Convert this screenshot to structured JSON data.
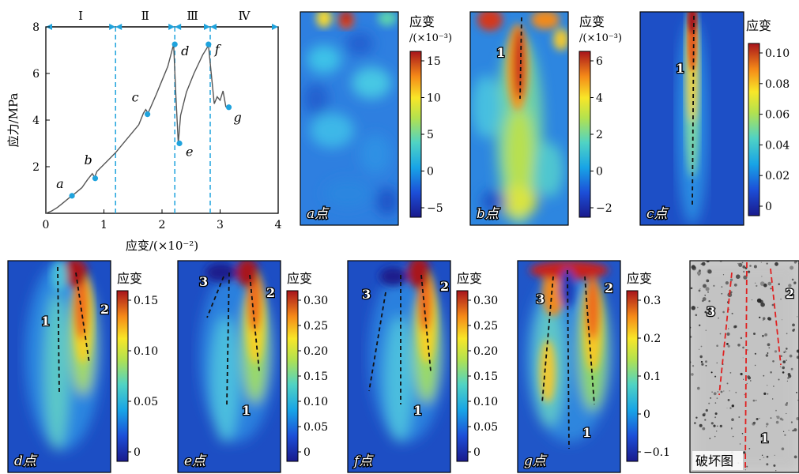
{
  "chart_data": {
    "type": "line",
    "xlabel": "应变/(×10⁻²)",
    "ylabel": "应力/MPa",
    "xlim": [
      0,
      4
    ],
    "ylim": [
      0,
      8
    ],
    "xticks": [
      "0",
      "1",
      "2",
      "3",
      "4"
    ],
    "yticks": [
      "2",
      "4",
      "6",
      "8"
    ],
    "grid": false,
    "stages": [
      {
        "label": "Ⅰ",
        "from": 0,
        "to": 1.2
      },
      {
        "label": "Ⅱ",
        "from": 1.2,
        "to": 2.22
      },
      {
        "label": "Ⅲ",
        "from": 2.22,
        "to": 2.83
      },
      {
        "label": "Ⅳ",
        "from": 2.83,
        "to": 4
      }
    ],
    "boundaries": [
      1.2,
      2.22,
      2.83
    ],
    "series": [
      {
        "x": [
          0,
          0.1,
          0.2,
          0.3,
          0.42,
          0.5,
          0.62,
          0.72,
          0.8,
          0.84,
          0.88,
          1.0,
          1.2,
          1.4,
          1.6,
          1.68,
          1.72,
          1.76,
          1.9,
          2.0,
          2.1,
          2.2,
          2.24,
          2.28,
          2.32,
          2.42,
          2.55,
          2.7,
          2.8,
          2.84,
          2.9,
          2.95,
          3.0,
          3.05,
          3.1
        ],
        "y": [
          0,
          0.1,
          0.25,
          0.45,
          0.7,
          0.85,
          1.1,
          1.45,
          1.7,
          1.55,
          1.8,
          2.1,
          2.6,
          3.2,
          3.8,
          4.3,
          4.45,
          4.3,
          5.1,
          5.7,
          6.3,
          7.25,
          5.0,
          3.0,
          4.2,
          5.2,
          6.0,
          6.8,
          7.2,
          6.2,
          4.7,
          5.0,
          4.85,
          5.25,
          4.55
        ]
      }
    ],
    "points": [
      {
        "label": "a",
        "x": 0.45,
        "y": 0.75
      },
      {
        "label": "b",
        "x": 0.85,
        "y": 1.5
      },
      {
        "label": "c",
        "x": 1.75,
        "y": 4.25
      },
      {
        "label": "d",
        "x": 2.22,
        "y": 7.25
      },
      {
        "label": "e",
        "x": 2.3,
        "y": 3.0
      },
      {
        "label": "f",
        "x": 2.8,
        "y": 7.25
      },
      {
        "label": "g",
        "x": 3.15,
        "y": 4.55
      }
    ]
  },
  "panels": [
    {
      "id": "a",
      "label": "a点",
      "colorbar_title": "应变",
      "colorbar_unit": "/(×10⁻³)",
      "ticks": [
        "15",
        "10",
        "5",
        "0",
        "−5"
      ],
      "crack_labels": []
    },
    {
      "id": "b",
      "label": "b点",
      "colorbar_title": "应变",
      "colorbar_unit": "/(×10⁻³)",
      "ticks": [
        "6",
        "4",
        "2",
        "0",
        "−2"
      ],
      "crack_labels": [
        "1"
      ]
    },
    {
      "id": "c",
      "label": "c点",
      "colorbar_title": "应变",
      "colorbar_unit": "",
      "ticks": [
        "0.10",
        "0.08",
        "0.06",
        "0.04",
        "0.02",
        "0"
      ],
      "crack_labels": [
        "1"
      ]
    },
    {
      "id": "d",
      "label": "d点",
      "colorbar_title": "应变",
      "colorbar_unit": "",
      "ticks": [
        "0.15",
        "0.10",
        "0.05",
        "0"
      ],
      "crack_labels": [
        "1",
        "2"
      ]
    },
    {
      "id": "e",
      "label": "e点",
      "colorbar_title": "应变",
      "colorbar_unit": "",
      "ticks": [
        "0.30",
        "0.25",
        "0.20",
        "0.15",
        "0.10",
        "0.05",
        "0"
      ],
      "crack_labels": [
        "3",
        "2",
        "1"
      ]
    },
    {
      "id": "f",
      "label": "f点",
      "colorbar_title": "应变",
      "colorbar_unit": "",
      "ticks": [
        "0.30",
        "0.25",
        "0.20",
        "0.15",
        "0.10",
        "0.05",
        "0"
      ],
      "crack_labels": [
        "3",
        "2",
        "1"
      ]
    },
    {
      "id": "g",
      "label": "g点",
      "colorbar_title": "应变",
      "colorbar_unit": "",
      "ticks": [
        "0.3",
        "0.2",
        "0.1",
        "0",
        "−0.1"
      ],
      "crack_labels": [
        "3",
        "2",
        "1"
      ]
    }
  ],
  "failure_photo": {
    "label": "破坏图",
    "crack_labels": [
      "3",
      "2",
      "1"
    ]
  },
  "colors": {
    "curve": "#555555",
    "marker": "#1fa3dd",
    "boundary": "#1fa3dd",
    "crack": "#111111",
    "photo_crack": "#e02020"
  }
}
